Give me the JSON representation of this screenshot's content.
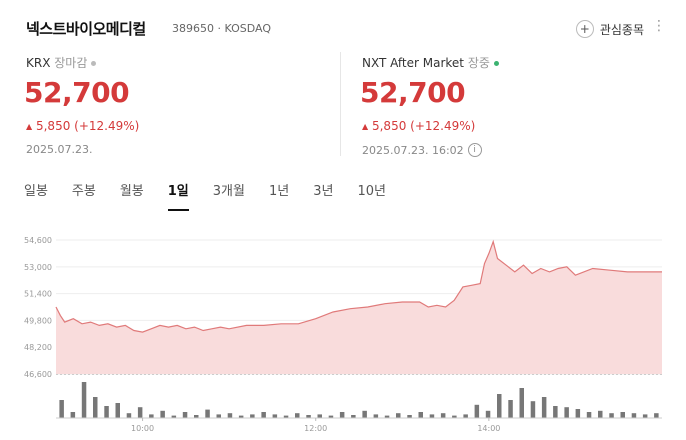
{
  "header": {
    "title": "넥스트바이오메디컬",
    "code_market": "389650 · KOSDAQ",
    "fav_label": "관심종목"
  },
  "krx": {
    "label": "KRX",
    "status": "장마감",
    "price": "52,700",
    "change": "5,850 (+12.49%)",
    "date": "2025.07.23."
  },
  "nxt": {
    "label": "NXT After Market",
    "status": "장중",
    "price": "52,700",
    "change": "5,850 (+12.49%)",
    "date": "2025.07.23. 16:02"
  },
  "tabs": [
    "일봉",
    "주봉",
    "월봉",
    "1일",
    "3개월",
    "1년",
    "3년",
    "10년"
  ],
  "active_tab": "1일",
  "colors": {
    "up": "#d43a3a",
    "line": "#e07a7a",
    "fill": "#f9dcdc",
    "vol": "#777777",
    "status_dot_krx": "#bbbbbb",
    "status_dot_nxt": "#3cb371"
  },
  "chart_data": {
    "type": "area",
    "y_ticks": [
      "54,600",
      "53,000",
      "51,400",
      "49,800",
      "48,200",
      "46,600"
    ],
    "y_tick_values": [
      54600,
      53000,
      51400,
      49800,
      48200,
      46600
    ],
    "ylim": [
      46600,
      55200
    ],
    "x_ticks": [
      "10:00",
      "12:00",
      "14:00"
    ],
    "x_tick_values": [
      10,
      12,
      14
    ],
    "xlim": [
      9,
      16
    ],
    "series": [
      {
        "x": [
          9.0,
          9.05,
          9.1,
          9.2,
          9.3,
          9.4,
          9.5,
          9.6,
          9.7,
          9.8,
          9.9,
          10.0,
          10.1,
          10.2,
          10.3,
          10.4,
          10.5,
          10.6,
          10.7,
          10.8,
          10.9,
          11.0,
          11.2,
          11.4,
          11.6,
          11.8,
          12.0,
          12.2,
          12.4,
          12.6,
          12.8,
          13.0,
          13.2,
          13.3,
          13.4,
          13.5,
          13.6,
          13.7,
          13.8,
          13.9,
          13.95,
          14.0,
          14.05,
          14.1,
          14.2,
          14.3,
          14.4,
          14.5,
          14.6,
          14.7,
          14.8,
          14.9,
          15.0,
          15.2,
          15.4,
          15.6,
          15.8,
          16.0
        ],
        "values": [
          50600,
          50100,
          49700,
          49900,
          49600,
          49700,
          49500,
          49600,
          49400,
          49500,
          49200,
          49100,
          49300,
          49500,
          49400,
          49500,
          49300,
          49400,
          49200,
          49300,
          49400,
          49300,
          49500,
          49500,
          49600,
          49600,
          49900,
          50300,
          50500,
          50600,
          50800,
          50900,
          50900,
          50600,
          50700,
          50600,
          51000,
          51800,
          51900,
          52000,
          53200,
          53800,
          54500,
          53500,
          53100,
          52700,
          53100,
          52600,
          52900,
          52700,
          52900,
          53000,
          52500,
          52900,
          52800,
          52700,
          52700,
          52700
        ]
      }
    ],
    "volume": [
      30,
      10,
      60,
      35,
      20,
      25,
      8,
      18,
      6,
      12,
      4,
      10,
      5,
      14,
      6,
      8,
      4,
      6,
      10,
      6,
      4,
      8,
      5,
      6,
      4,
      10,
      5,
      12,
      6,
      4,
      8,
      5,
      10,
      6,
      8,
      4,
      6,
      22,
      12,
      40,
      30,
      50,
      28,
      35,
      20,
      18,
      15,
      10,
      12,
      8,
      10,
      8,
      6,
      8
    ]
  }
}
